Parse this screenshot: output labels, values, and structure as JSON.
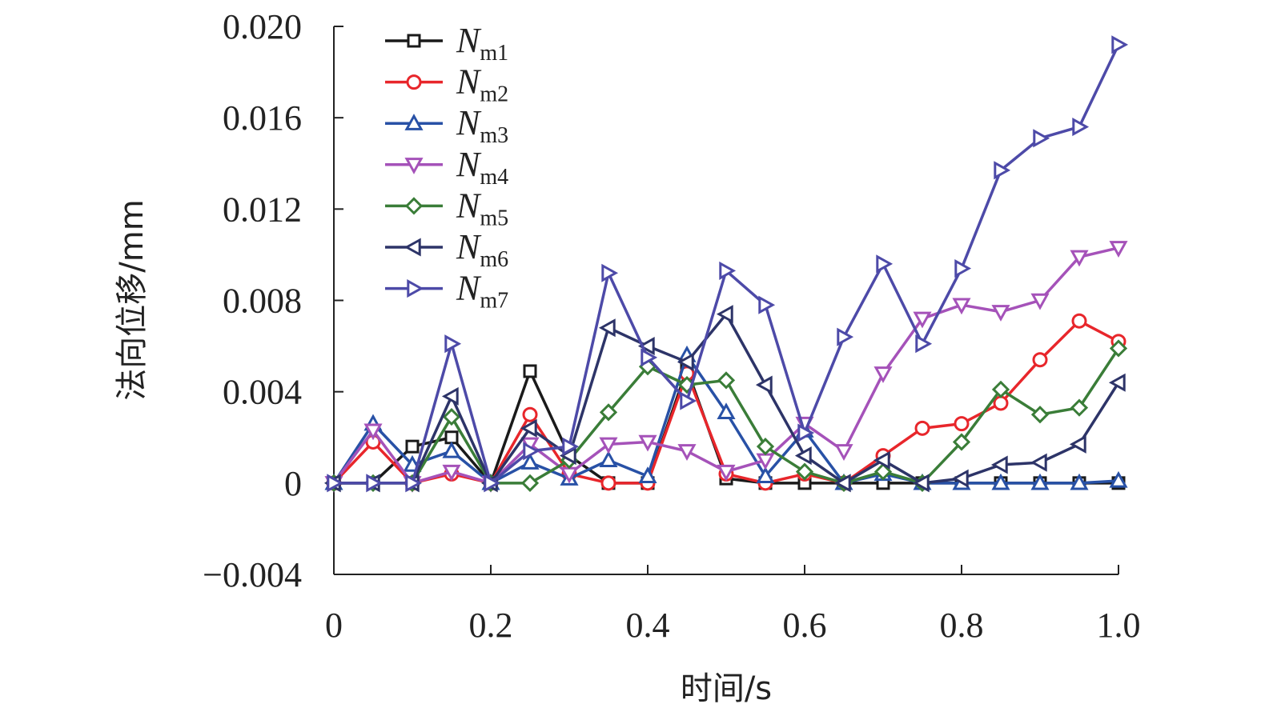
{
  "chart_data": {
    "type": "line",
    "title": "",
    "xlabel": "时间/s",
    "ylabel": "法向位移/mm",
    "xlim": [
      0,
      1.0
    ],
    "ylim": [
      -0.004,
      0.02
    ],
    "x_ticks": [
      0,
      0.2,
      0.4,
      0.6,
      0.8,
      1.0
    ],
    "x_tick_labels": [
      "0",
      "0.2",
      "0.4",
      "0.6",
      "0.8",
      "1.0"
    ],
    "y_ticks": [
      -0.004,
      0,
      0.004,
      0.008,
      0.012,
      0.016,
      0.02
    ],
    "y_tick_labels": [
      "−0.004",
      "0",
      "0.004",
      "0.008",
      "0.012",
      "0.016",
      "0.020"
    ],
    "grid": false,
    "legend_position": "top-left",
    "x": [
      0,
      0.05,
      0.1,
      0.15,
      0.2,
      0.25,
      0.3,
      0.35,
      0.4,
      0.45,
      0.5,
      0.55,
      0.6,
      0.65,
      0.7,
      0.75,
      0.8,
      0.85,
      0.9,
      0.95,
      1.0
    ],
    "series": [
      {
        "name": "N",
        "sub": "m1",
        "color": "#1a1a1a",
        "marker": "square",
        "values": [
          0,
          0,
          0.0016,
          0.002,
          0,
          0.0049,
          0.0012,
          0,
          0,
          0.005,
          0.0002,
          0,
          0,
          0,
          0,
          0,
          0,
          0,
          0,
          0,
          0
        ]
      },
      {
        "name": "N",
        "sub": "m2",
        "color": "#e8262b",
        "marker": "circle",
        "values": [
          0,
          0.0018,
          0,
          0.0004,
          0,
          0.003,
          0.0004,
          0,
          0,
          0.0048,
          0.0004,
          0,
          0.0004,
          0,
          0.0012,
          0.0024,
          0.0026,
          0.0035,
          0.0054,
          0.0071,
          0.0062
        ]
      },
      {
        "name": "N",
        "sub": "m3",
        "color": "#2851a6",
        "marker": "triangle-up",
        "values": [
          0,
          0.0026,
          0.0008,
          0.0014,
          0,
          0.0009,
          0.0002,
          0.001,
          0.0003,
          0.0056,
          0.0031,
          0.0003,
          0.0023,
          0,
          0.0004,
          0,
          0,
          0,
          0,
          0,
          0.0001
        ]
      },
      {
        "name": "N",
        "sub": "m4",
        "color": "#a552b9",
        "marker": "triangle-down",
        "values": [
          0,
          0.0023,
          0,
          0.0005,
          0,
          0.0017,
          0.0004,
          0.0017,
          0.0018,
          0.0014,
          0.0005,
          0.001,
          0.0026,
          0.0014,
          0.0048,
          0.0072,
          0.0078,
          0.0075,
          0.008,
          0.0099,
          0.0103
        ]
      },
      {
        "name": "N",
        "sub": "m5",
        "color": "#3a7d38",
        "marker": "diamond",
        "values": [
          0,
          0,
          0,
          0.0029,
          0,
          0,
          0.001,
          0.0031,
          0.0051,
          0.0043,
          0.0045,
          0.0016,
          0.0005,
          0,
          0.0005,
          0,
          0.0018,
          0.0041,
          0.003,
          0.0033,
          0.0059
        ]
      },
      {
        "name": "N",
        "sub": "m6",
        "color": "#2d3468",
        "marker": "triangle-left",
        "values": [
          0,
          0,
          0,
          0.0038,
          0,
          0.0024,
          0.0012,
          0.0068,
          0.006,
          0.0053,
          0.0074,
          0.0043,
          0.0012,
          0,
          0.001,
          0,
          0.0002,
          0.0008,
          0.0009,
          0.0017,
          0.0044
        ]
      },
      {
        "name": "N",
        "sub": "m7",
        "color": "#4d4aa8",
        "marker": "triangle-right",
        "values": [
          0,
          0,
          0,
          0.0061,
          0,
          0.0014,
          0.0016,
          0.0092,
          0.0055,
          0.0036,
          0.0093,
          0.0078,
          0.0022,
          0.0064,
          0.0096,
          0.0061,
          0.0094,
          0.0137,
          0.0151,
          0.0156,
          0.0192
        ]
      }
    ]
  }
}
